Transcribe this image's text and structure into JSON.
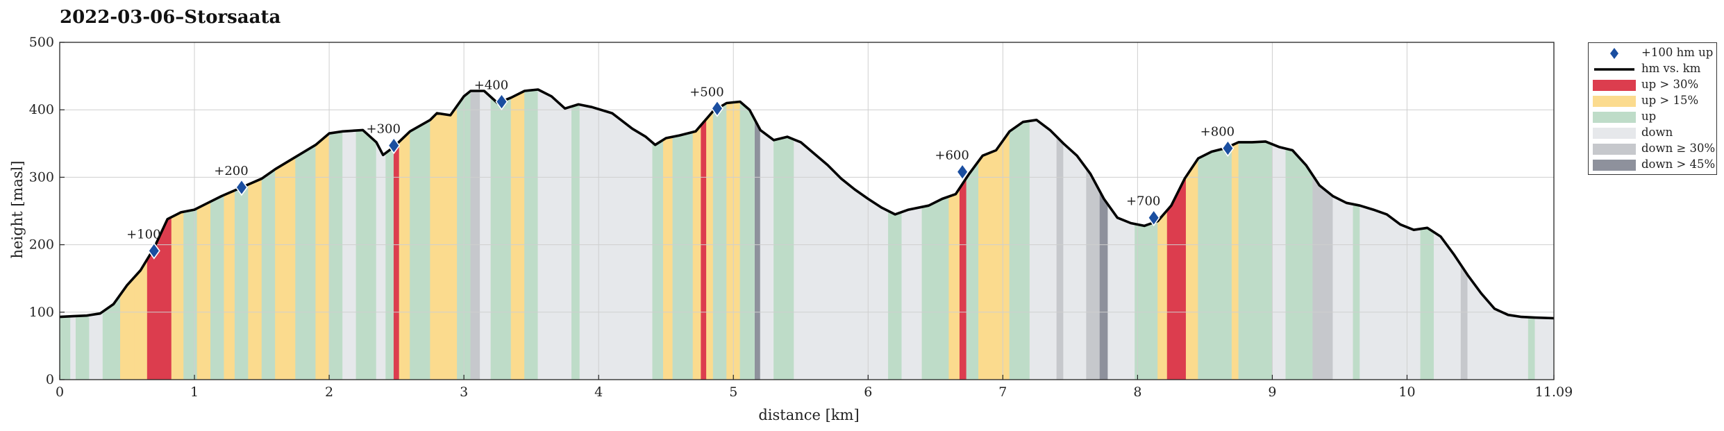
{
  "title": "2022-03-06–Storsaata",
  "colors": {
    "up30": "#dc3d4e",
    "up15": "#fbdb8e",
    "up": "#bedcc8",
    "down": "#e6e8eb",
    "down30": "#c6c8cc",
    "down45": "#8e919c",
    "line": "#000000",
    "marker": "#1a4ea0"
  },
  "legend": [
    {
      "key": "marker",
      "label": "+100 hm up"
    },
    {
      "key": "line",
      "label": "hm vs. km"
    },
    {
      "key": "up30",
      "label": "up > 30%"
    },
    {
      "key": "up15",
      "label": "up > 15%"
    },
    {
      "key": "up",
      "label": "up"
    },
    {
      "key": "down",
      "label": "down"
    },
    {
      "key": "down30",
      "label": "down ≥ 30%"
    },
    {
      "key": "down45",
      "label": "down > 45%"
    }
  ],
  "chart_data": {
    "type": "area",
    "xlabel": "distance [km]",
    "ylabel": "height [masl]",
    "xlim": [
      0,
      11.09
    ],
    "ylim": [
      0,
      500
    ],
    "xticks": [
      "0",
      "1",
      "2",
      "3",
      "4",
      "5",
      "6",
      "7",
      "8",
      "9",
      "10",
      "11.09"
    ],
    "yticks": [
      "0",
      "100",
      "200",
      "300",
      "400",
      "500"
    ],
    "grid": true,
    "legend_position": "outside-top-right",
    "profile": [
      [
        0.0,
        93
      ],
      [
        0.1,
        94
      ],
      [
        0.2,
        95
      ],
      [
        0.3,
        98
      ],
      [
        0.4,
        112
      ],
      [
        0.5,
        140
      ],
      [
        0.6,
        162
      ],
      [
        0.7,
        195
      ],
      [
        0.8,
        238
      ],
      [
        0.9,
        248
      ],
      [
        1.0,
        252
      ],
      [
        1.1,
        262
      ],
      [
        1.2,
        272
      ],
      [
        1.35,
        285
      ],
      [
        1.5,
        298
      ],
      [
        1.6,
        312
      ],
      [
        1.75,
        330
      ],
      [
        1.9,
        348
      ],
      [
        2.0,
        365
      ],
      [
        2.1,
        368
      ],
      [
        2.25,
        370
      ],
      [
        2.35,
        352
      ],
      [
        2.4,
        333
      ],
      [
        2.48,
        345
      ],
      [
        2.6,
        368
      ],
      [
        2.75,
        385
      ],
      [
        2.8,
        395
      ],
      [
        2.9,
        392
      ],
      [
        3.0,
        420
      ],
      [
        3.05,
        428
      ],
      [
        3.15,
        428
      ],
      [
        3.25,
        410
      ],
      [
        3.35,
        418
      ],
      [
        3.45,
        428
      ],
      [
        3.55,
        430
      ],
      [
        3.65,
        420
      ],
      [
        3.75,
        402
      ],
      [
        3.85,
        408
      ],
      [
        3.95,
        404
      ],
      [
        4.1,
        395
      ],
      [
        4.25,
        372
      ],
      [
        4.35,
        360
      ],
      [
        4.42,
        348
      ],
      [
        4.5,
        358
      ],
      [
        4.6,
        362
      ],
      [
        4.72,
        368
      ],
      [
        4.85,
        398
      ],
      [
        4.95,
        410
      ],
      [
        5.05,
        412
      ],
      [
        5.12,
        400
      ],
      [
        5.2,
        370
      ],
      [
        5.3,
        355
      ],
      [
        5.4,
        360
      ],
      [
        5.5,
        352
      ],
      [
        5.6,
        335
      ],
      [
        5.7,
        318
      ],
      [
        5.8,
        298
      ],
      [
        5.9,
        282
      ],
      [
        6.0,
        268
      ],
      [
        6.1,
        255
      ],
      [
        6.2,
        245
      ],
      [
        6.3,
        252
      ],
      [
        6.45,
        258
      ],
      [
        6.55,
        268
      ],
      [
        6.65,
        275
      ],
      [
        6.75,
        305
      ],
      [
        6.85,
        332
      ],
      [
        6.95,
        340
      ],
      [
        7.05,
        368
      ],
      [
        7.15,
        382
      ],
      [
        7.25,
        385
      ],
      [
        7.35,
        370
      ],
      [
        7.45,
        350
      ],
      [
        7.55,
        332
      ],
      [
        7.65,
        305
      ],
      [
        7.75,
        268
      ],
      [
        7.85,
        240
      ],
      [
        7.95,
        232
      ],
      [
        8.05,
        228
      ],
      [
        8.15,
        235
      ],
      [
        8.25,
        258
      ],
      [
        8.35,
        298
      ],
      [
        8.45,
        328
      ],
      [
        8.55,
        338
      ],
      [
        8.65,
        343
      ],
      [
        8.75,
        352
      ],
      [
        8.85,
        352
      ],
      [
        8.95,
        353
      ],
      [
        9.05,
        345
      ],
      [
        9.15,
        340
      ],
      [
        9.25,
        318
      ],
      [
        9.35,
        288
      ],
      [
        9.45,
        272
      ],
      [
        9.55,
        262
      ],
      [
        9.65,
        258
      ],
      [
        9.75,
        252
      ],
      [
        9.85,
        245
      ],
      [
        9.95,
        230
      ],
      [
        10.05,
        222
      ],
      [
        10.15,
        225
      ],
      [
        10.25,
        212
      ],
      [
        10.35,
        185
      ],
      [
        10.45,
        155
      ],
      [
        10.55,
        128
      ],
      [
        10.65,
        105
      ],
      [
        10.75,
        96
      ],
      [
        10.85,
        93
      ],
      [
        10.95,
        92
      ],
      [
        11.09,
        91
      ]
    ],
    "segments": [
      [
        0.0,
        0.08,
        "up"
      ],
      [
        0.08,
        0.12,
        "down"
      ],
      [
        0.12,
        0.22,
        "up"
      ],
      [
        0.22,
        0.32,
        "down"
      ],
      [
        0.32,
        0.45,
        "up"
      ],
      [
        0.45,
        0.55,
        "up15"
      ],
      [
        0.55,
        0.65,
        "up15"
      ],
      [
        0.65,
        0.83,
        "up30"
      ],
      [
        0.83,
        0.92,
        "up15"
      ],
      [
        0.92,
        1.02,
        "up"
      ],
      [
        1.02,
        1.12,
        "up15"
      ],
      [
        1.12,
        1.22,
        "up"
      ],
      [
        1.22,
        1.3,
        "up15"
      ],
      [
        1.3,
        1.4,
        "up"
      ],
      [
        1.4,
        1.5,
        "up15"
      ],
      [
        1.5,
        1.6,
        "up"
      ],
      [
        1.6,
        1.75,
        "up15"
      ],
      [
        1.75,
        1.9,
        "up"
      ],
      [
        1.9,
        2.0,
        "up15"
      ],
      [
        2.0,
        2.1,
        "up"
      ],
      [
        2.1,
        2.2,
        "down"
      ],
      [
        2.2,
        2.35,
        "up"
      ],
      [
        2.35,
        2.42,
        "down"
      ],
      [
        2.42,
        2.48,
        "up"
      ],
      [
        2.48,
        2.52,
        "up30"
      ],
      [
        2.52,
        2.6,
        "up15"
      ],
      [
        2.6,
        2.75,
        "up"
      ],
      [
        2.75,
        2.95,
        "up15"
      ],
      [
        2.95,
        3.05,
        "up"
      ],
      [
        3.05,
        3.12,
        "down30"
      ],
      [
        3.12,
        3.2,
        "down"
      ],
      [
        3.2,
        3.35,
        "up"
      ],
      [
        3.35,
        3.45,
        "up15"
      ],
      [
        3.45,
        3.55,
        "up"
      ],
      [
        3.55,
        3.8,
        "down"
      ],
      [
        3.8,
        3.86,
        "up"
      ],
      [
        3.86,
        4.3,
        "down"
      ],
      [
        4.3,
        4.4,
        "down"
      ],
      [
        4.4,
        4.48,
        "up"
      ],
      [
        4.48,
        4.55,
        "up15"
      ],
      [
        4.55,
        4.7,
        "up"
      ],
      [
        4.7,
        4.76,
        "up15"
      ],
      [
        4.76,
        4.8,
        "up30"
      ],
      [
        4.8,
        4.85,
        "up15"
      ],
      [
        4.85,
        4.95,
        "up"
      ],
      [
        4.95,
        5.05,
        "up15"
      ],
      [
        5.05,
        5.16,
        "up"
      ],
      [
        5.16,
        5.2,
        "down45"
      ],
      [
        5.2,
        5.3,
        "down"
      ],
      [
        5.3,
        5.45,
        "up"
      ],
      [
        5.45,
        5.6,
        "down"
      ],
      [
        5.6,
        5.7,
        "down"
      ],
      [
        5.7,
        6.15,
        "down"
      ],
      [
        6.15,
        6.25,
        "up"
      ],
      [
        6.25,
        6.4,
        "down"
      ],
      [
        6.4,
        6.6,
        "up"
      ],
      [
        6.6,
        6.68,
        "up15"
      ],
      [
        6.68,
        6.73,
        "up30"
      ],
      [
        6.73,
        6.82,
        "up"
      ],
      [
        6.82,
        6.95,
        "up15"
      ],
      [
        6.95,
        7.05,
        "up15"
      ],
      [
        7.05,
        7.2,
        "up"
      ],
      [
        7.2,
        7.4,
        "down"
      ],
      [
        7.4,
        7.45,
        "down30"
      ],
      [
        7.45,
        7.62,
        "down"
      ],
      [
        7.62,
        7.72,
        "down30"
      ],
      [
        7.72,
        7.78,
        "down45"
      ],
      [
        7.78,
        7.98,
        "down"
      ],
      [
        7.98,
        8.15,
        "up"
      ],
      [
        8.15,
        8.22,
        "up15"
      ],
      [
        8.22,
        8.36,
        "up30"
      ],
      [
        8.36,
        8.45,
        "up15"
      ],
      [
        8.45,
        8.7,
        "up"
      ],
      [
        8.7,
        8.75,
        "up15"
      ],
      [
        8.75,
        9.0,
        "up"
      ],
      [
        9.0,
        9.1,
        "down"
      ],
      [
        9.1,
        9.3,
        "up"
      ],
      [
        9.3,
        9.45,
        "down30"
      ],
      [
        9.45,
        9.6,
        "down"
      ],
      [
        9.6,
        9.65,
        "up"
      ],
      [
        9.65,
        10.1,
        "down"
      ],
      [
        10.1,
        10.2,
        "up"
      ],
      [
        10.2,
        10.4,
        "down"
      ],
      [
        10.4,
        10.45,
        "down30"
      ],
      [
        10.45,
        10.9,
        "down"
      ],
      [
        10.9,
        10.95,
        "up"
      ],
      [
        10.95,
        11.09,
        "down"
      ]
    ],
    "markers": [
      {
        "x": 0.7,
        "y": 191,
        "label": "+100"
      },
      {
        "x": 1.35,
        "y": 285,
        "label": "+200"
      },
      {
        "x": 2.48,
        "y": 347,
        "label": "+300"
      },
      {
        "x": 3.28,
        "y": 412,
        "label": "+400"
      },
      {
        "x": 4.88,
        "y": 402,
        "label": "+500"
      },
      {
        "x": 6.7,
        "y": 308,
        "label": "+600"
      },
      {
        "x": 8.12,
        "y": 240,
        "label": "+700"
      },
      {
        "x": 8.67,
        "y": 343,
        "label": "+800"
      }
    ]
  }
}
